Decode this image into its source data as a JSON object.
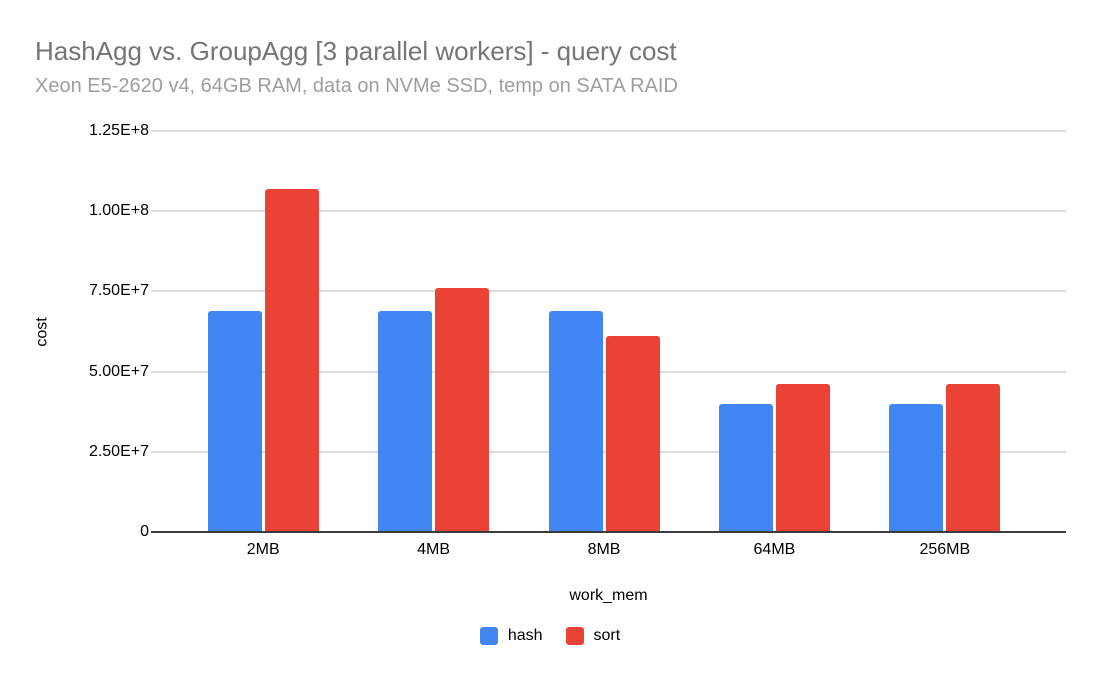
{
  "chart_data": {
    "type": "bar",
    "title": "HashAgg vs. GroupAgg [3 parallel workers] - query cost",
    "subtitle": "Xeon E5-2620 v4, 64GB RAM, data on NVMe SSD, temp on SATA RAID",
    "xlabel": "work_mem",
    "ylabel": "cost",
    "categories": [
      "2MB",
      "4MB",
      "8MB",
      "64MB",
      "256MB"
    ],
    "series": [
      {
        "name": "hash",
        "color": "#4285F4",
        "values": [
          69000000,
          69000000,
          69000000,
          40000000,
          40000000
        ]
      },
      {
        "name": "sort",
        "color": "#EA4335",
        "values": [
          107000000,
          76000000,
          61000000,
          46000000,
          46000000
        ]
      }
    ],
    "ylim": [
      0,
      125000000
    ],
    "yticks": [
      {
        "value": 0,
        "label": "0"
      },
      {
        "value": 25000000,
        "label": "2.50E+7"
      },
      {
        "value": 50000000,
        "label": "5.00E+7"
      },
      {
        "value": 75000000,
        "label": "7.50E+7"
      },
      {
        "value": 100000000,
        "label": "1.00E+8"
      },
      {
        "value": 125000000,
        "label": "1.25E+8"
      }
    ],
    "grid": true,
    "legend_position": "bottom",
    "colors": {
      "title": "#757575",
      "subtitle": "#9e9e9e",
      "grid": "#dadce0",
      "axis": "#3c3c3c",
      "tick_text": "#000000",
      "background": "#ffffff"
    }
  }
}
